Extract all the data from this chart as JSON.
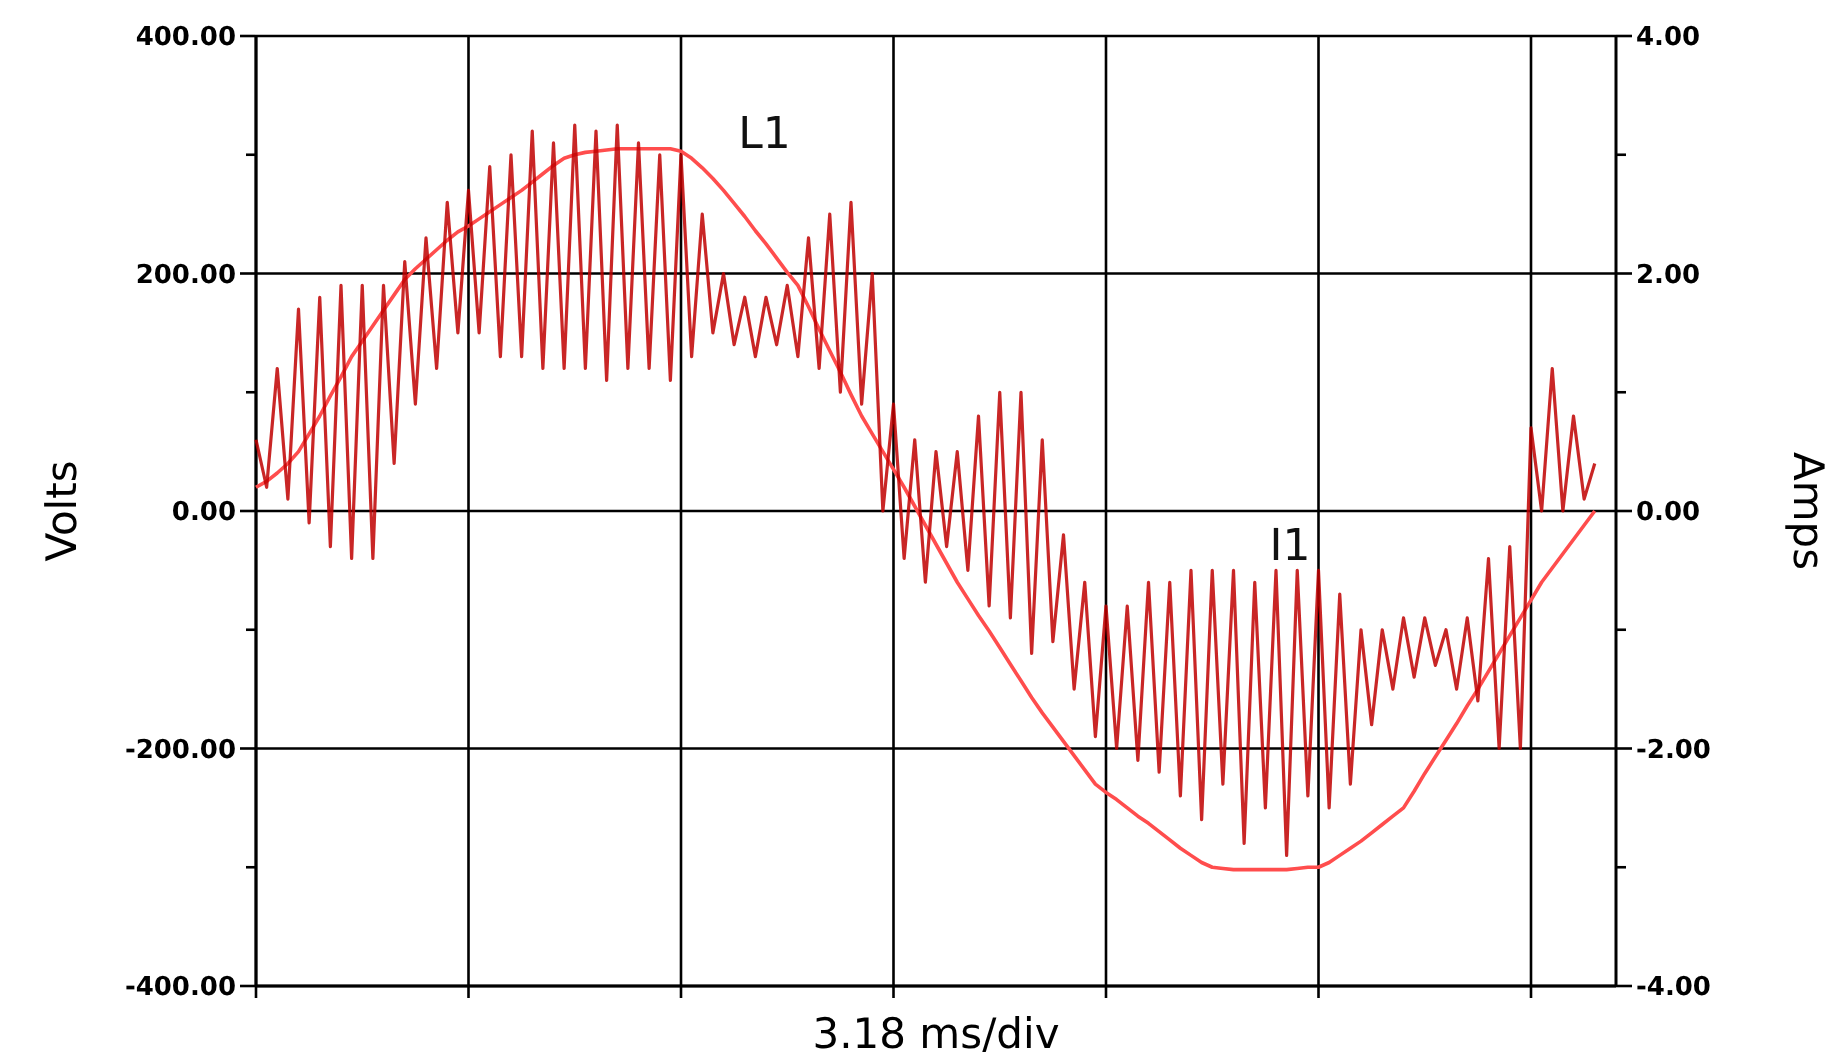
{
  "chart_data": {
    "type": "line",
    "xlabel": "3.18 ms/div",
    "ylabel": "Volts",
    "y2label": "Amps",
    "grid": true,
    "marker": "none",
    "line_style": "solid",
    "tick_labels": "y",
    "categories": [
      null,
      null,
      null,
      null,
      null,
      null,
      null,
      null,
      null,
      null,
      null,
      null,
      null,
      null,
      null,
      null,
      null,
      null,
      null,
      null,
      null,
      null,
      null,
      null,
      null,
      null,
      null,
      null,
      null,
      null,
      null,
      null,
      null,
      null,
      null,
      null,
      null,
      null,
      null,
      null,
      null,
      null,
      null,
      null,
      null,
      null,
      null,
      null,
      null,
      null,
      null,
      null,
      null,
      null,
      null,
      null,
      null,
      null,
      null,
      null,
      null,
      null,
      null,
      null,
      null,
      null,
      null,
      null,
      null,
      null,
      null,
      null,
      null,
      null,
      null,
      null,
      null,
      null,
      null,
      null,
      null,
      null,
      null,
      null,
      null,
      null,
      null,
      null,
      null,
      null,
      null,
      null,
      null,
      null,
      null,
      null,
      null,
      null,
      null,
      null,
      null,
      null,
      null,
      null,
      null,
      null,
      null,
      null,
      null,
      null,
      null,
      null,
      null,
      null,
      null,
      null,
      null,
      null,
      null,
      null,
      null,
      null,
      null,
      null,
      null,
      null,
      null,
      null,
      null
    ],
    "ylim": [
      -400,
      400
    ],
    "yticks": [
      {
        "value": -400,
        "label": "-400.00"
      },
      {
        "value": -300,
        "label": null
      },
      {
        "value": -200,
        "label": "-200.00"
      },
      {
        "value": -100,
        "label": null
      },
      {
        "value": 0,
        "label": "0.00"
      },
      {
        "value": 100,
        "label": null
      },
      {
        "value": 200,
        "label": "200.00"
      },
      {
        "value": 300,
        "label": null
      },
      {
        "value": 400,
        "label": "400.00"
      }
    ],
    "y2lim": [
      -4,
      4
    ],
    "y2ticks": [
      {
        "value": -4,
        "label": "-4.00"
      },
      {
        "value": -3,
        "label": null
      },
      {
        "value": -2,
        "label": "-2.00"
      },
      {
        "value": -1,
        "label": null
      },
      {
        "value": 0,
        "label": "0.00"
      },
      {
        "value": 1,
        "label": null
      },
      {
        "value": 2,
        "label": "2.00"
      },
      {
        "value": 3,
        "label": null
      },
      {
        "value": 4,
        "label": "4.00"
      }
    ],
    "series": [
      {
        "name": "L1",
        "color": "#ff4d4d",
        "values": [
          20,
          25,
          32,
          40,
          50,
          65,
          80,
          97,
          113,
          130,
          143,
          156,
          169,
          182,
          195,
          204,
          212,
          220,
          228,
          235,
          240,
          246,
          252,
          258,
          264,
          270,
          277,
          284,
          291,
          297,
          300,
          302,
          303,
          304,
          305,
          305,
          305,
          305,
          305,
          305,
          303,
          297,
          289,
          280,
          270,
          259,
          248,
          236,
          225,
          213,
          201,
          190,
          172,
          153,
          135,
          117,
          98,
          80,
          65,
          50,
          35,
          20,
          4,
          -12,
          -28,
          -44,
          -60,
          -74,
          -88,
          -101,
          -115,
          -129,
          -143,
          -157,
          -170,
          -182,
          -194,
          -206,
          -218,
          -230,
          -237,
          -243,
          -250,
          -257,
          -263,
          -270,
          -277,
          -284,
          -290,
          -296,
          -300,
          -301,
          -302,
          -302,
          -302,
          -302,
          -302,
          -302,
          -301,
          -300,
          -300,
          -296,
          -290,
          -284,
          -278,
          -271,
          -264,
          -257,
          -250,
          -236,
          -221,
          -207,
          -193,
          -179,
          -164,
          -150,
          -135,
          -120,
          -105,
          -90,
          -75,
          -60,
          -48,
          -36,
          -24,
          -12,
          0,
          null,
          null
        ]
      },
      {
        "name": "I1",
        "color": "#c00000",
        "axis": "y2",
        "values": [
          0.6,
          0.2,
          1.2,
          0.1,
          1.7,
          -0.1,
          1.8,
          -0.3,
          1.9,
          -0.4,
          1.9,
          -0.4,
          1.9,
          0.4,
          2.1,
          0.9,
          2.3,
          1.2,
          2.6,
          1.5,
          2.7,
          1.5,
          2.9,
          1.3,
          3.0,
          1.3,
          3.2,
          1.2,
          3.1,
          1.2,
          3.25,
          1.2,
          3.2,
          1.1,
          3.25,
          1.2,
          3.1,
          1.2,
          3.0,
          1.1,
          3.0,
          1.3,
          2.5,
          1.5,
          2.0,
          1.4,
          1.8,
          1.3,
          1.8,
          1.4,
          1.9,
          1.3,
          2.3,
          1.2,
          2.5,
          1.0,
          2.6,
          0.9,
          2.0,
          0.0,
          0.9,
          -0.4,
          0.6,
          -0.6,
          0.5,
          -0.3,
          0.5,
          -0.5,
          0.8,
          -0.8,
          1.0,
          -0.9,
          1.0,
          -1.2,
          0.6,
          -1.1,
          -0.2,
          -1.5,
          -0.6,
          -1.9,
          -0.8,
          -2.0,
          -0.8,
          -2.1,
          -0.6,
          -2.2,
          -0.6,
          -2.4,
          -0.5,
          -2.6,
          -0.5,
          -2.3,
          -0.5,
          -2.8,
          -0.6,
          -2.5,
          -0.5,
          -2.9,
          -0.5,
          -2.4,
          -0.5,
          -2.5,
          -0.7,
          -2.3,
          -1.0,
          -1.8,
          -1.0,
          -1.5,
          -0.9,
          -1.4,
          -0.9,
          -1.3,
          -1.0,
          -1.5,
          -0.9,
          -1.6,
          -0.4,
          -2.0,
          -0.3,
          -2.0,
          0.7,
          0.0,
          1.2,
          0.0,
          0.8,
          0.1,
          0.4,
          null,
          null
        ]
      }
    ]
  }
}
